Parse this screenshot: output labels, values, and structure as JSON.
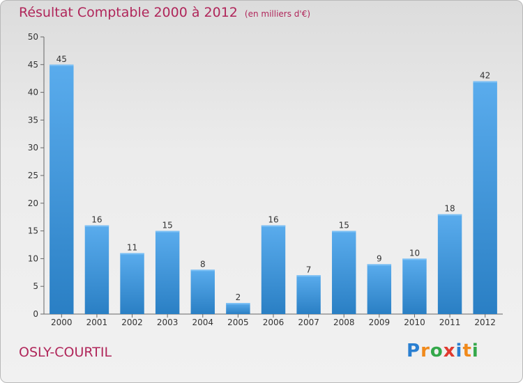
{
  "title": "Résultat Comptable 2000 à 2012",
  "subtitle": "(en milliers d'€)",
  "place": "OSLY-COURTIL",
  "logo": {
    "text": "Proxiti",
    "letters": [
      "P",
      "r",
      "o",
      "x",
      "i",
      "t",
      "i"
    ],
    "colors": [
      "#2a7fd1",
      "#f08a1c",
      "#34a84a",
      "#e03a2f",
      "#2a7fd1",
      "#f08a1c",
      "#34a84a"
    ]
  },
  "colors": {
    "title": "#b0265a",
    "bar_top": "#5aaced",
    "bar_bottom": "#2a7fc4",
    "axis": "#666666"
  },
  "chart_data": {
    "type": "bar",
    "categories": [
      "2000",
      "2001",
      "2002",
      "2003",
      "2004",
      "2005",
      "2006",
      "2007",
      "2008",
      "2009",
      "2010",
      "2011",
      "2012"
    ],
    "values": [
      45,
      16,
      11,
      15,
      8,
      2,
      16,
      7,
      15,
      9,
      10,
      18,
      42
    ],
    "ylim": [
      0,
      50
    ],
    "yticks": [
      0,
      5,
      10,
      15,
      20,
      25,
      30,
      35,
      40,
      45,
      50
    ],
    "grid": false,
    "data_labels": true
  }
}
